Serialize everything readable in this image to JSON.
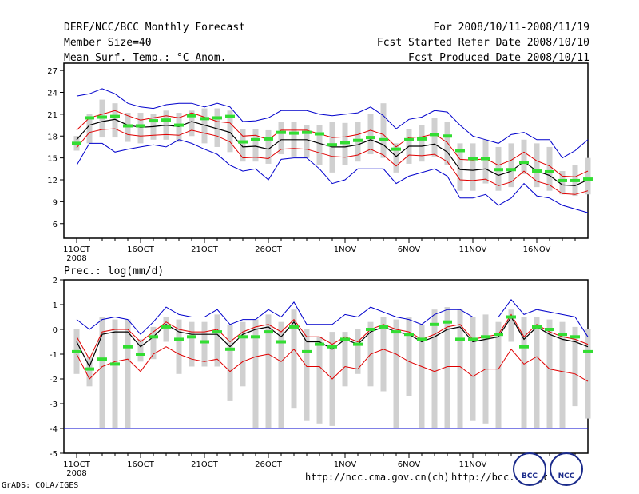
{
  "header": {
    "left": [
      "DERF/NCC/BCC Monthly Forecast",
      "Member Size=40",
      "Mean Surf. Temp.: °C Anom."
    ],
    "right": [
      "For 2008/10/11-2008/11/19",
      "Fcst Started Refer Date 2008/10/10",
      "Fcst Produced Date 2008/10/11"
    ]
  },
  "precip_label": "Prec.: log(mm/d)",
  "footer": {
    "grads": "GrADS: COLA/IGES",
    "url1": "http://ncc.cma.gov.cn(ch)",
    "url2": "http://bcc.cma.gov.cn",
    "logo_bcc": "BCC",
    "logo_ncc": "NCC"
  },
  "colors": {
    "ensemble_mean": "#000000",
    "spread": "#e00000",
    "extreme": "#0000cc",
    "box": "#d0d0d0",
    "obs": "#33dd33",
    "ref_line": "#0000cc"
  },
  "chart_data": [
    {
      "type": "line",
      "title": "Mean Surf. Temp.: °C Anom.",
      "x_ticks": [
        {
          "day": 0,
          "label": "11OCT"
        },
        {
          "day": 5,
          "label": "16OCT"
        },
        {
          "day": 10,
          "label": "21OCT"
        },
        {
          "day": 15,
          "label": "26OCT"
        },
        {
          "day": 21,
          "label": "1NOV"
        },
        {
          "day": 26,
          "label": "6NOV"
        },
        {
          "day": 31,
          "label": "11NOV"
        },
        {
          "day": 36,
          "label": "16NOV"
        }
      ],
      "year_label": "2008",
      "xlim": [
        -1,
        40
      ],
      "ylim": [
        4,
        28
      ],
      "y_ticks": [
        6,
        9,
        12,
        15,
        18,
        21,
        24,
        27
      ],
      "ensemble_mean": [
        17.5,
        19.5,
        20,
        20.3,
        19.5,
        19.2,
        19.3,
        19.5,
        19.3,
        20,
        19.5,
        19,
        18.5,
        16.5,
        16.6,
        16.2,
        17.5,
        17.5,
        17.5,
        17,
        16.5,
        16.5,
        16.8,
        17.5,
        16.8,
        15.2,
        16.6,
        16.6,
        16.9,
        15.8,
        13.4,
        13.3,
        13.5,
        12.6,
        13.2,
        14.5,
        13.2,
        12.6,
        11.3,
        11.2,
        12
      ],
      "upper_spread": [
        18.8,
        20.5,
        21,
        21.5,
        20.8,
        20.2,
        20.5,
        20.8,
        20.5,
        21.2,
        20.6,
        20,
        19.8,
        18,
        18.1,
        17.5,
        18.8,
        18.8,
        18.8,
        18.3,
        17.8,
        17.9,
        18.2,
        18.8,
        18.2,
        16.5,
        17.8,
        17.9,
        18.3,
        17.1,
        14.8,
        14.7,
        14.9,
        14,
        14.7,
        15.8,
        14.6,
        13.9,
        12.5,
        12.4,
        13.2
      ],
      "lower_spread": [
        16.4,
        18.5,
        18.9,
        19,
        18.2,
        18,
        18.1,
        18.2,
        18.1,
        18.8,
        18.4,
        18,
        17.2,
        15,
        15.1,
        14.9,
        16.2,
        16.3,
        16.2,
        15.7,
        15.2,
        15.1,
        15.4,
        16.2,
        15.4,
        13.9,
        15.4,
        15.3,
        15.5,
        14.5,
        12,
        11.9,
        12.1,
        11.2,
        11.7,
        13.2,
        11.8,
        11.3,
        10.1,
        10,
        10.5
      ],
      "ensemble_max": [
        23.5,
        23.8,
        24.5,
        23.8,
        22.5,
        22,
        21.8,
        22.3,
        22.5,
        22.5,
        22,
        22.5,
        22,
        20,
        20.1,
        20.5,
        21.5,
        21.5,
        21.5,
        21,
        20.8,
        21,
        21.2,
        22,
        20.8,
        19,
        20.3,
        20.6,
        21.5,
        21.3,
        19.5,
        18,
        17.5,
        17,
        18.2,
        18.5,
        17.5,
        17.5,
        15,
        16,
        17.5
      ],
      "ensemble_min": [
        14,
        17,
        17,
        15.8,
        16.2,
        16.5,
        16.8,
        16.5,
        17.5,
        17,
        16.2,
        15.5,
        14,
        13.2,
        13.5,
        12,
        14.8,
        15,
        15,
        13.5,
        11.5,
        12,
        13.5,
        13.5,
        13.5,
        11.5,
        12.5,
        13,
        13.5,
        12.5,
        9.5,
        9.5,
        10,
        8.5,
        9.5,
        11.5,
        9.8,
        9.5,
        8.5,
        8,
        7.5
      ],
      "box_max": [
        18,
        21,
        23,
        22.5,
        21.2,
        21.2,
        21,
        21.5,
        21.2,
        21.5,
        21.8,
        21.8,
        21.5,
        19,
        19,
        18.8,
        20,
        20,
        19.5,
        19.5,
        20,
        19.8,
        20,
        21,
        22.5,
        17,
        19,
        19.5,
        20.5,
        20,
        17,
        17,
        17.5,
        16.5,
        17,
        17.5,
        17,
        16.5,
        13.2,
        14,
        15
      ],
      "box_min": [
        16,
        17,
        17.8,
        17.8,
        17.2,
        17,
        17.5,
        17.5,
        17.2,
        18,
        17,
        16.5,
        15.8,
        14.5,
        14.5,
        14.2,
        15.5,
        15.2,
        15,
        14,
        13,
        14,
        14.5,
        15.5,
        15,
        13,
        14.2,
        14.5,
        15.2,
        14,
        10.5,
        10.5,
        11.5,
        10.5,
        11,
        12.8,
        11,
        10.5,
        10,
        9.8,
        10
      ],
      "observed": [
        17,
        20.5,
        20.6,
        20.7,
        19.4,
        19.4,
        20.1,
        20.2,
        19.5,
        20.8,
        20.4,
        20.5,
        20.7,
        17.2,
        17.5,
        17.6,
        18.5,
        18.4,
        18.5,
        18.3,
        16.8,
        17.1,
        17.4,
        17.8,
        17.5,
        16.2,
        17.5,
        17.6,
        18.2,
        18,
        16,
        14.9,
        14.9,
        13.4,
        13.4,
        14.4,
        13.2,
        13.1,
        11.9,
        11.9,
        12.1
      ]
    },
    {
      "type": "line",
      "title": "Prec.: log(mm/d)",
      "x_ticks": [
        {
          "day": 0,
          "label": "11OCT"
        },
        {
          "day": 5,
          "label": "16OCT"
        },
        {
          "day": 10,
          "label": "21OCT"
        },
        {
          "day": 15,
          "label": "26OCT"
        },
        {
          "day": 21,
          "label": "1NOV"
        },
        {
          "day": 26,
          "label": "6NOV"
        },
        {
          "day": 31,
          "label": "11NOV"
        }
      ],
      "year_label": "2008",
      "xlim": [
        -1,
        40
      ],
      "ylim": [
        -5,
        2
      ],
      "y_ticks": [
        -5,
        -4,
        -3,
        -2,
        -1,
        0,
        1,
        2
      ],
      "reference_line": -4,
      "ensemble_mean": [
        -0.5,
        -1.5,
        -0.2,
        -0.1,
        -0.1,
        -0.7,
        -0.3,
        0.2,
        -0.1,
        -0.2,
        -0.2,
        -0.2,
        -0.7,
        -0.2,
        0,
        0.1,
        -0.3,
        0.3,
        -0.5,
        -0.5,
        -0.8,
        -0.4,
        -0.6,
        -0.1,
        0.1,
        -0.1,
        -0.2,
        -0.5,
        -0.3,
        0,
        0.1,
        -0.5,
        -0.4,
        -0.3,
        0.5,
        -0.4,
        0.1,
        -0.2,
        -0.4,
        -0.5,
        -0.7
      ],
      "upper_spread": [
        -0.3,
        -1.2,
        -0.1,
        0,
        0,
        -0.5,
        -0.1,
        0.3,
        0,
        -0.1,
        -0.1,
        0,
        -0.5,
        -0.1,
        0.1,
        0.2,
        -0.1,
        0.4,
        -0.3,
        -0.3,
        -0.6,
        -0.3,
        -0.5,
        0,
        0.2,
        0,
        -0.1,
        -0.4,
        -0.2,
        0.1,
        0.2,
        -0.4,
        -0.3,
        -0.2,
        0.6,
        -0.3,
        0.2,
        -0.1,
        -0.3,
        -0.4,
        -0.6
      ],
      "lower_spread": [
        -1,
        -2,
        -1.5,
        -1.3,
        -1.2,
        -1.7,
        -1,
        -0.7,
        -1,
        -1.2,
        -1.3,
        -1.2,
        -1.7,
        -1.3,
        -1.1,
        -1,
        -1.3,
        -0.8,
        -1.5,
        -1.5,
        -2,
        -1.5,
        -1.6,
        -1,
        -0.8,
        -1,
        -1.3,
        -1.5,
        -1.7,
        -1.5,
        -1.5,
        -1.9,
        -1.6,
        -1.6,
        -0.8,
        -1.4,
        -1.1,
        -1.6,
        -1.7,
        -1.8,
        -2.1
      ],
      "ensemble_max": [
        0.4,
        0,
        0.4,
        0.5,
        0.4,
        -0.2,
        0.3,
        0.9,
        0.6,
        0.5,
        0.5,
        0.8,
        0.2,
        0.4,
        0.4,
        0.8,
        0.5,
        1.1,
        0.2,
        0.2,
        0.2,
        0.6,
        0.5,
        0.9,
        0.7,
        0.5,
        0.4,
        0.2,
        0.6,
        0.8,
        0.8,
        0.5,
        0.5,
        0.5,
        1.2,
        0.6,
        0.8,
        0.7,
        0.6,
        0.5,
        -0.3
      ],
      "box_max": [
        0,
        -1.1,
        0.5,
        0.4,
        0.4,
        -0.4,
        0.1,
        0.5,
        0.4,
        0.3,
        0.3,
        0.6,
        0.2,
        0.3,
        0.4,
        0.6,
        0.3,
        0.8,
        0,
        -0.3,
        -0.1,
        -0.1,
        0,
        0.3,
        0.5,
        0.4,
        0.5,
        0.2,
        0.8,
        0.9,
        0.8,
        0.5,
        0.6,
        0.3,
        0.8,
        0.5,
        0.5,
        0.4,
        0.3,
        0.1,
        0
      ],
      "box_min": [
        -1.8,
        -2.3,
        -4,
        -4,
        -4,
        -1.3,
        -1.2,
        -0.5,
        -1.8,
        -1.5,
        -1.5,
        -1.5,
        -2.9,
        -2.3,
        -4,
        -4,
        -4,
        -3.2,
        -3.7,
        -3.8,
        -3.9,
        -2.3,
        -1.8,
        -2.3,
        -2.5,
        -4,
        -2.7,
        -4,
        -4,
        -4,
        -4,
        -3.7,
        -3.8,
        -4,
        -0.5,
        -4,
        -4,
        -4,
        -4,
        -3.1,
        -3.6
      ],
      "observed": [
        -0.9,
        -1.6,
        -1.2,
        -1.4,
        -0.7,
        -1,
        -0.3,
        0.1,
        -0.4,
        -0.3,
        -0.5,
        -0.1,
        -0.8,
        -0.3,
        -0.3,
        -0.1,
        -0.5,
        0.1,
        -0.9,
        -0.6,
        -0.7,
        -0.4,
        -0.6,
        0,
        0.1,
        -0.1,
        -0.2,
        -0.4,
        0.2,
        0.3,
        -0.4,
        -0.4,
        -0.3,
        -0.2,
        0.5,
        -0.7,
        0.1,
        0,
        -0.2,
        -0.3,
        -0.9
      ]
    }
  ]
}
